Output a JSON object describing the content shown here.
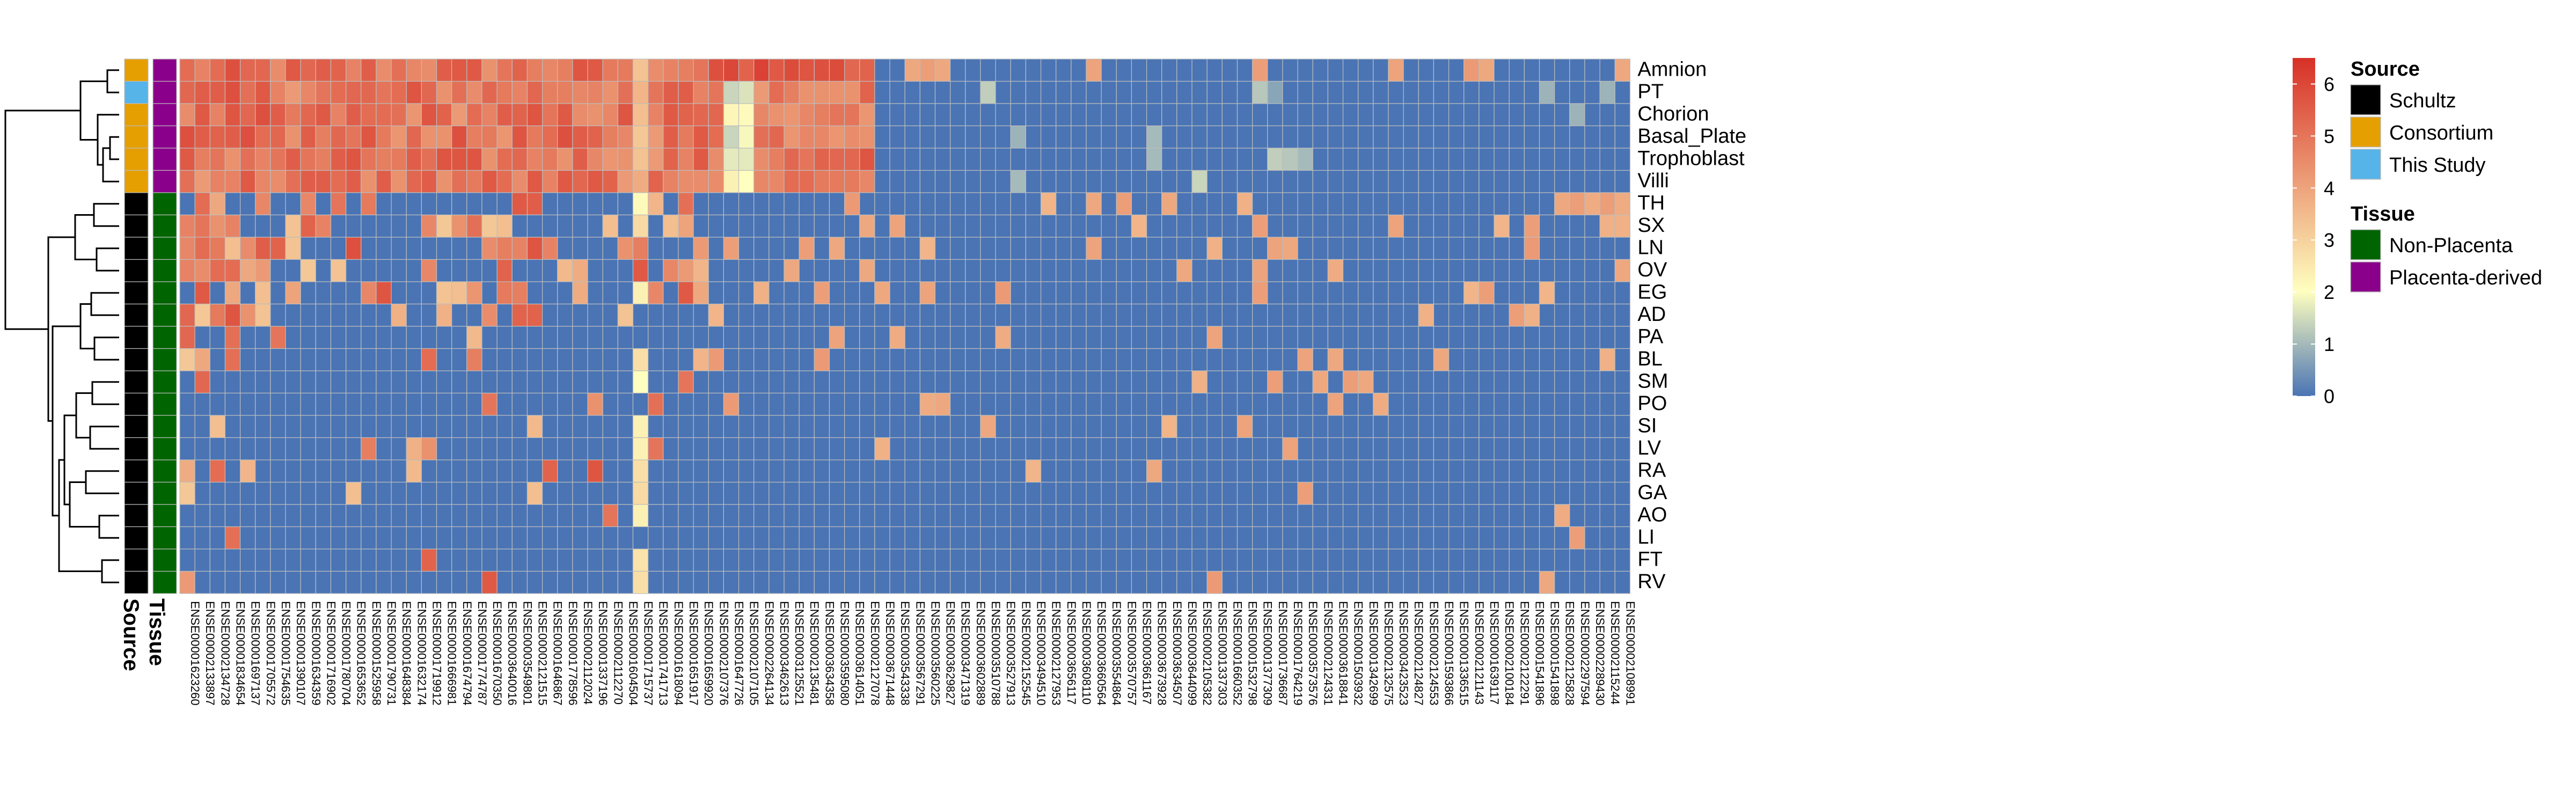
{
  "chart_data": {
    "type": "heatmap",
    "rows": [
      "Amnion",
      "PT",
      "Chorion",
      "Basal_Plate",
      "Trophoblast",
      "Villi",
      "TH",
      "SX",
      "LN",
      "OV",
      "EG",
      "AD",
      "PA",
      "BL",
      "SM",
      "PO",
      "SI",
      "LV",
      "RA",
      "GA",
      "AO",
      "LI",
      "FT",
      "RV"
    ],
    "columns": [
      "ENSE00001623260",
      "ENSE00002133897",
      "ENSE00002134728",
      "ENSE00001834654",
      "ENSE00001697137",
      "ENSE00001705572",
      "ENSE00001754635",
      "ENSE00001390107",
      "ENSE00001634359",
      "ENSE00001716902",
      "ENSE00001780704",
      "ENSE00001653652",
      "ENSE00001525958",
      "ENSE00001790731",
      "ENSE00001648384",
      "ENSE00001632174",
      "ENSE00001719912",
      "ENSE00001666981",
      "ENSE00001674794",
      "ENSE00001774787",
      "ENSE00001670350",
      "ENSE00003640016",
      "ENSE00003549801",
      "ENSE00002121515",
      "ENSE00001646867",
      "ENSE00001778596",
      "ENSE00002112024",
      "ENSE00001337196",
      "ENSE00002112270",
      "ENSE00001604504",
      "ENSE00001715737",
      "ENSE00001741713",
      "ENSE00001618094",
      "ENSE00001651917",
      "ENSE00001659920",
      "ENSE00002107376",
      "ENSE00001647726",
      "ENSE00002107105",
      "ENSE00002264134",
      "ENSE00003462613",
      "ENSE00003125521",
      "ENSE00002135481",
      "ENSE00003634358",
      "ENSE00003595080",
      "ENSE00003614051",
      "ENSE00002127078",
      "ENSE00003671448",
      "ENSE00003543338",
      "ENSE00003567291",
      "ENSE00003560225",
      "ENSE00003629827",
      "ENSE00003471319",
      "ENSE00003602889",
      "ENSE00003510788",
      "ENSE00003527913",
      "ENSE00002152545",
      "ENSE00003494510",
      "ENSE00002127953",
      "ENSE00003656117",
      "ENSE00003608110",
      "ENSE00003660564",
      "ENSE00003554864",
      "ENSE00003570757",
      "ENSE00003661167",
      "ENSE00003673928",
      "ENSE00003634507",
      "ENSE00003644099",
      "ENSE00002105382",
      "ENSE00001337303",
      "ENSE00001660352",
      "ENSE00001532798",
      "ENSE00001377309",
      "ENSE00001736687",
      "ENSE00001764219",
      "ENSE00003573576",
      "ENSE00002124331",
      "ENSE00003618841",
      "ENSE00001503932",
      "ENSE00001342699",
      "ENSE00002132575",
      "ENSE00003423523",
      "ENSE00002124827",
      "ENSE00002124553",
      "ENSE00001593866",
      "ENSE00001336515",
      "ENSE00002121143",
      "ENSE00001639117",
      "ENSE00002100184",
      "ENSE00002122291",
      "ENSE00001541896",
      "ENSE00001541898",
      "ENSE00002125828",
      "ENSE00002297594",
      "ENSE00002289430",
      "ENSE00002115244",
      "ENSE00002108991"
    ],
    "value_range": [
      0,
      6.5
    ],
    "legend_ticks": [
      0,
      1,
      2,
      3,
      4,
      5,
      6
    ],
    "colors": [
      "#4a74b4",
      "#ffffbf",
      "#d73027"
    ],
    "grid": true,
    "legend_placement": "right",
    "row_source": [
      "Consortium",
      "This Study",
      "Consortium",
      "Consortium",
      "Consortium",
      "Consortium",
      "Schultz",
      "Schultz",
      "Schultz",
      "Schultz",
      "Schultz",
      "Schultz",
      "Schultz",
      "Schultz",
      "Schultz",
      "Schultz",
      "Schultz",
      "Schultz",
      "Schultz",
      "Schultz",
      "Schultz",
      "Schultz",
      "Schultz",
      "Schultz"
    ],
    "row_tissue": [
      "Placenta-derived",
      "Placenta-derived",
      "Placenta-derived",
      "Placenta-derived",
      "Placenta-derived",
      "Placenta-derived",
      "Non-Placenta",
      "Non-Placenta",
      "Non-Placenta",
      "Non-Placenta",
      "Non-Placenta",
      "Non-Placenta",
      "Non-Placenta",
      "Non-Placenta",
      "Non-Placenta",
      "Non-Placenta",
      "Non-Placenta",
      "Non-Placenta",
      "Non-Placenta",
      "Non-Placenta",
      "Non-Placenta",
      "Non-Placenta",
      "Non-Placenta",
      "Non-Placenta"
    ],
    "annotation_titles": {
      "source": "Source",
      "tissue": "Tissue"
    },
    "source_legend": [
      {
        "label": "Schultz",
        "color": "#000000"
      },
      {
        "label": "Consortium",
        "color": "#e69f00"
      },
      {
        "label": "This Study",
        "color": "#56b4e9"
      }
    ],
    "tissue_legend": [
      {
        "label": "Non-Placenta",
        "color": "#006400"
      },
      {
        "label": "Placenta-derived",
        "color": "#8b008b"
      }
    ]
  }
}
